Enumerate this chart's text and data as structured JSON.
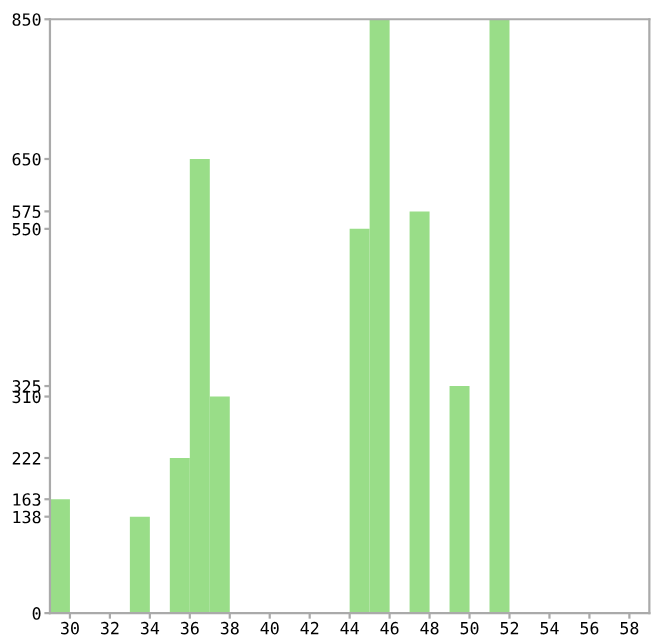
{
  "chart_data": {
    "type": "histogram",
    "bins": [
      29,
      30,
      31,
      32,
      33,
      34,
      35,
      36,
      37,
      38,
      39,
      40,
      41,
      42,
      43,
      44,
      45,
      46,
      47,
      48,
      49,
      50,
      51,
      52,
      53,
      54,
      55,
      56,
      57,
      58,
      59
    ],
    "values": [
      163,
      0,
      0,
      0,
      138,
      0,
      222,
      650,
      310,
      0,
      0,
      0,
      0,
      0,
      0,
      550,
      850,
      0,
      575,
      0,
      325,
      0,
      850,
      0,
      0,
      0,
      0,
      0,
      0,
      0
    ],
    "color": "#99dd88",
    "xlim": [
      29,
      59
    ],
    "xticks": [
      30,
      32,
      34,
      36,
      38,
      40,
      42,
      44,
      46,
      48,
      50,
      52,
      54,
      56,
      58
    ],
    "ylim": [
      0,
      850
    ],
    "yticks": [
      0,
      138,
      163,
      222,
      310,
      325,
      550,
      575,
      650,
      850
    ],
    "grid": false
  }
}
